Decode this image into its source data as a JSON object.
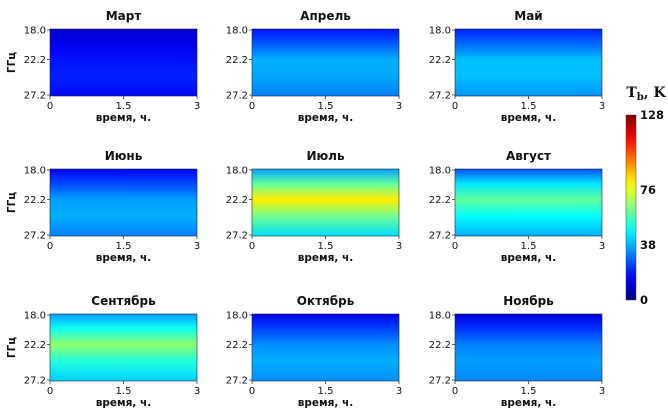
{
  "chart_data": {
    "type": "heatmap",
    "colorbar": {
      "title": "Tb, K",
      "title_main": "T",
      "title_sub": "b",
      "title_rest": ", K",
      "ticks": [
        "128",
        "76",
        "38",
        "0"
      ],
      "range": [
        0,
        128
      ],
      "colormap": "jet"
    },
    "panels": [
      {
        "title": "Март",
        "xlabel": "время, ч.",
        "ylabel": "ГГц",
        "xticks": [
          "0",
          "1.5",
          "3"
        ],
        "yticks": [
          "18.0",
          "22.2",
          "27.2"
        ],
        "xlim": [
          0,
          3
        ],
        "ylim_ghz": [
          18.0,
          27.2
        ],
        "profile_ghz": [
          18.0,
          20.0,
          22.2,
          24.5,
          27.2
        ],
        "profile_tb": [
          10,
          14,
          18,
          20,
          17
        ]
      },
      {
        "title": "Апрель",
        "xlabel": "время, ч.",
        "ylabel": "",
        "xticks": [
          "0",
          "1.5",
          "3"
        ],
        "yticks": [
          "18.0",
          "22.2",
          "27.2"
        ],
        "xlim": [
          0,
          3
        ],
        "ylim_ghz": [
          18.0,
          27.2
        ],
        "profile_ghz": [
          18.0,
          20.0,
          22.2,
          24.5,
          27.2
        ],
        "profile_tb": [
          18,
          27,
          38,
          37,
          32
        ]
      },
      {
        "title": "Май",
        "xlabel": "время, ч.",
        "ylabel": "",
        "xticks": [
          "0",
          "1.5",
          "3"
        ],
        "yticks": [
          "18.0",
          "22.2",
          "27.2"
        ],
        "xlim": [
          0,
          3
        ],
        "ylim_ghz": [
          18.0,
          27.2
        ],
        "profile_ghz": [
          18.0,
          20.0,
          22.2,
          24.5,
          27.2
        ],
        "profile_tb": [
          20,
          29,
          40,
          40,
          35
        ]
      },
      {
        "title": "Июнь",
        "xlabel": "время, ч.",
        "ylabel": "ГГц",
        "xticks": [
          "0",
          "1.5",
          "3"
        ],
        "yticks": [
          "18.0",
          "22.2",
          "27.2"
        ],
        "xlim": [
          0,
          3
        ],
        "ylim_ghz": [
          18.0,
          27.2
        ],
        "profile_ghz": [
          18.0,
          20.0,
          22.2,
          24.5,
          27.2
        ],
        "profile_tb": [
          16,
          25,
          36,
          38,
          32
        ]
      },
      {
        "title": "Июль",
        "xlabel": "время, ч.",
        "ylabel": "",
        "xticks": [
          "0",
          "1.5",
          "3"
        ],
        "yticks": [
          "18.0",
          "22.2",
          "27.2"
        ],
        "xlim": [
          0,
          3
        ],
        "ylim_ghz": [
          18.0,
          27.2
        ],
        "profile_ghz": [
          18.0,
          20.0,
          22.2,
          24.5,
          27.2
        ],
        "profile_tb": [
          36,
          60,
          82,
          62,
          44
        ]
      },
      {
        "title": "Август",
        "xlabel": "время, ч.",
        "ylabel": "",
        "xticks": [
          "0",
          "1.5",
          "3"
        ],
        "yticks": [
          "18.0",
          "22.2",
          "27.2"
        ],
        "xlim": [
          0,
          3
        ],
        "ylim_ghz": [
          18.0,
          27.2
        ],
        "profile_ghz": [
          18.0,
          20.0,
          22.2,
          24.5,
          27.2
        ],
        "profile_tb": [
          26,
          45,
          60,
          48,
          38
        ]
      },
      {
        "title": "Сентябрь",
        "xlabel": "время, ч.",
        "ylabel": "ГГц",
        "xticks": [
          "0",
          "1.5",
          "3"
        ],
        "yticks": [
          "18.0",
          "22.2",
          "27.2"
        ],
        "xlim": [
          0,
          3
        ],
        "ylim_ghz": [
          18.0,
          27.2
        ],
        "profile_ghz": [
          18.0,
          20.0,
          22.2,
          24.5,
          27.2
        ],
        "profile_tb": [
          36,
          50,
          66,
          52,
          42
        ]
      },
      {
        "title": "Октябрь",
        "xlabel": "время, ч.",
        "ylabel": "",
        "xticks": [
          "0",
          "1.5",
          "3"
        ],
        "yticks": [
          "18.0",
          "22.2",
          "27.2"
        ],
        "xlim": [
          0,
          3
        ],
        "ylim_ghz": [
          18.0,
          27.2
        ],
        "profile_ghz": [
          18.0,
          20.0,
          22.2,
          24.5,
          27.2
        ],
        "profile_tb": [
          14,
          24,
          34,
          38,
          34
        ]
      },
      {
        "title": "Ноябрь",
        "xlabel": "время, ч.",
        "ylabel": "",
        "xticks": [
          "0",
          "1.5",
          "3"
        ],
        "yticks": [
          "18.0",
          "22.2",
          "27.2"
        ],
        "xlim": [
          0,
          3
        ],
        "ylim_ghz": [
          18.0,
          27.2
        ],
        "profile_ghz": [
          18.0,
          20.0,
          22.2,
          24.5,
          27.2
        ],
        "profile_tb": [
          12,
          22,
          32,
          36,
          33
        ]
      }
    ]
  }
}
